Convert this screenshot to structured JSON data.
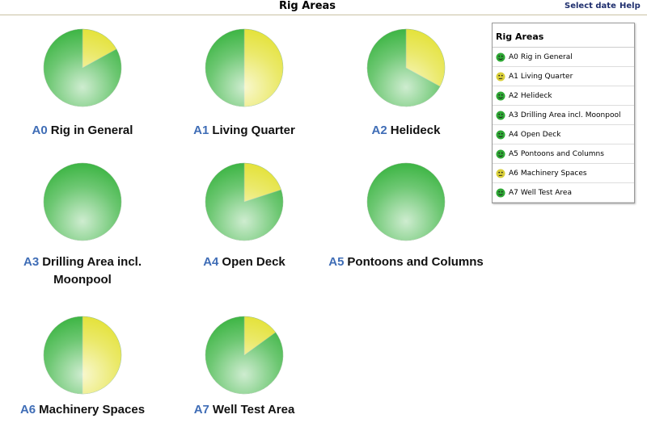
{
  "header": {
    "title": "Rig Areas",
    "links": [
      "Select date",
      "Help"
    ]
  },
  "chart_data": {
    "type": "pie",
    "slice_colors": [
      "#3db544",
      "#e4e23a"
    ],
    "status_colors": {
      "good": "#2ea835",
      "fair": "#d9cf3a"
    },
    "areas": [
      {
        "code": "A0",
        "name": "Rig in General",
        "status": "good",
        "values": [
          83,
          17
        ]
      },
      {
        "code": "A1",
        "name": "Living Quarter",
        "status": "fair",
        "values": [
          50,
          50
        ]
      },
      {
        "code": "A2",
        "name": "Helideck",
        "status": "good",
        "values": [
          67,
          33
        ]
      },
      {
        "code": "A3",
        "name": "Drilling Area incl. Moonpool",
        "status": "good",
        "values": [
          100,
          0
        ]
      },
      {
        "code": "A4",
        "name": "Open Deck",
        "status": "good",
        "values": [
          80,
          20
        ]
      },
      {
        "code": "A5",
        "name": "Pontoons and Columns",
        "status": "good",
        "values": [
          100,
          0
        ]
      },
      {
        "code": "A6",
        "name": "Machinery Spaces",
        "status": "fair",
        "values": [
          50,
          50
        ]
      },
      {
        "code": "A7",
        "name": "Well Test Area",
        "status": "good",
        "values": [
          85,
          15
        ]
      }
    ]
  },
  "legend": {
    "title": "Rig Areas"
  }
}
